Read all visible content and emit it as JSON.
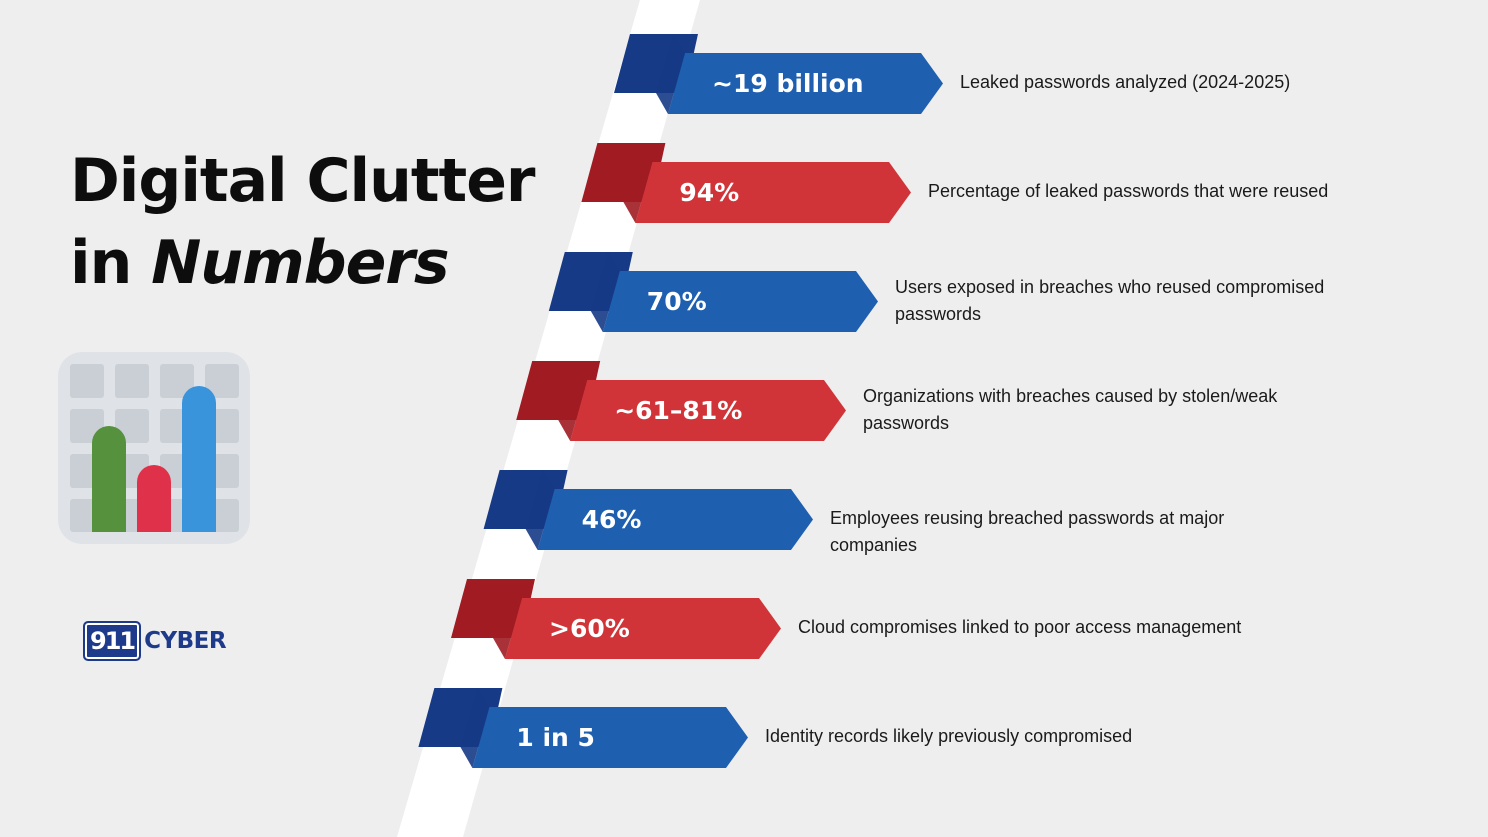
{
  "title": {
    "line1": "Digital Clutter",
    "line2_prefix": "in ",
    "line2_italic": "Numbers"
  },
  "logo": {
    "mark": "911",
    "word": "CYBER"
  },
  "colors": {
    "blue": "#1e5fb0",
    "blue_dark": "#163a86",
    "red": "#d13438",
    "red_dark": "#a01c22",
    "icon_green": "#56913d",
    "icon_red": "#e0314a",
    "icon_blue": "#3a94dc"
  },
  "stats": [
    {
      "value": "~19 billion",
      "description": "Leaked passwords analyzed (2024-2025)",
      "color": "blue"
    },
    {
      "value": "94%",
      "description": "Percentage of leaked passwords that were reused",
      "color": "red"
    },
    {
      "value": "70%",
      "description": "Users exposed in breaches who reused compromised passwords",
      "color": "blue"
    },
    {
      "value": "~61–81%",
      "description": "Organizations with breaches caused by stolen/weak passwords",
      "color": "red"
    },
    {
      "value": "46%",
      "description": "Employees reusing breached passwords at major companies",
      "color": "blue"
    },
    {
      "value": ">60%",
      "description": "Cloud compromises linked to poor access management",
      "color": "red"
    },
    {
      "value": "1 in 5",
      "description": "Identity records likely previously compromised",
      "color": "blue"
    }
  ]
}
